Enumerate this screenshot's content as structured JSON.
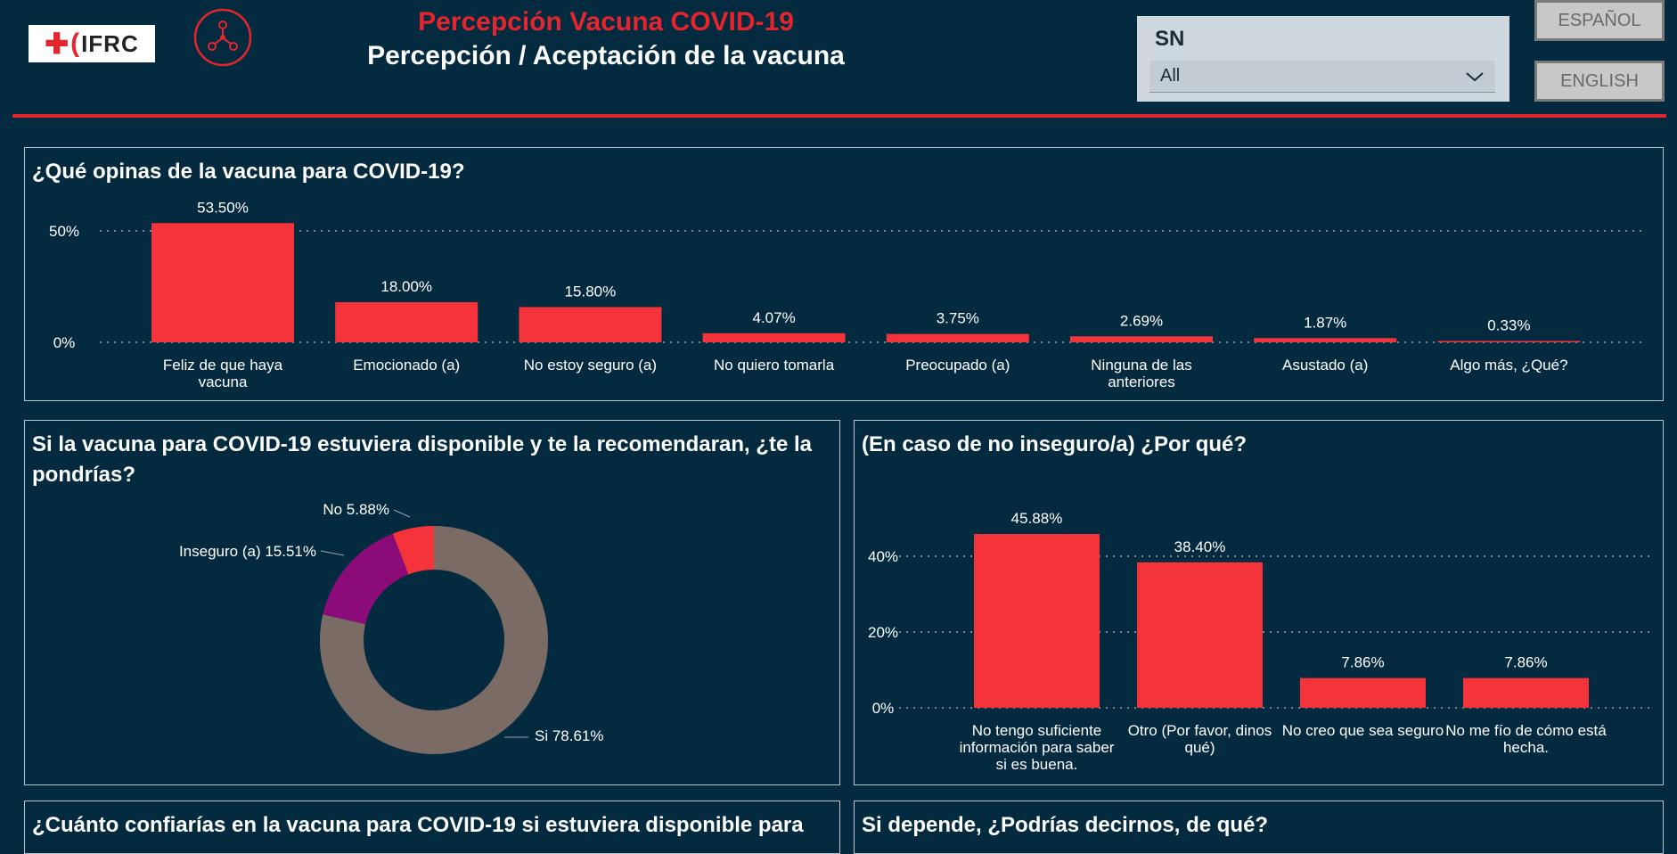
{
  "header": {
    "logo_text": "IFRC",
    "title": "Percepción Vacuna COVID-19",
    "subtitle": "Percepción / Aceptación de la vacuna",
    "filter_label": "SN",
    "filter_value": "All",
    "lang_es": "ESPAÑOL",
    "lang_en": "ENGLISH",
    "accent_color": "#e3262e",
    "bg_color": "#042a40"
  },
  "panels": {
    "p1_title": "¿Qué opinas de la vacuna para COVID-19?",
    "p2_title": "Si la vacuna para COVID-19 estuviera disponible y te la recomendaran, ¿te la pondrías?",
    "p3_title": "(En caso de no inseguro/a) ¿Por qué?",
    "p4_title": "¿Cuánto confiarías en la vacuna para COVID-19 si estuviera disponible para",
    "p5_title": "Si depende, ¿Podrías decirnos, de qué?"
  },
  "chart_data": [
    {
      "type": "bar",
      "title": "¿Qué opinas de la vacuna para COVID-19?",
      "categories": [
        "Feliz de que haya vacuna",
        "Emocionado (a)",
        "No estoy seguro (a)",
        "No quiero tomarla",
        "Preocupado (a)",
        "Ninguna de las anteriores",
        "Asustado (a)",
        "Algo más, ¿Qué?"
      ],
      "values": [
        53.5,
        18.0,
        15.8,
        4.07,
        3.75,
        2.69,
        1.87,
        0.33
      ],
      "labels": [
        "53.50%",
        "18.00%",
        "15.80%",
        "4.07%",
        "3.75%",
        "2.69%",
        "1.87%",
        "0.33%"
      ],
      "yticks": [
        "0%",
        "50%"
      ],
      "ylim": [
        0,
        60
      ],
      "color": "#f4333a"
    },
    {
      "type": "pie",
      "title": "Si la vacuna para COVID-19 estuviera disponible y te la recomendaran, ¿te la pondrías?",
      "slices": [
        {
          "name": "Si",
          "value": 78.61,
          "label": "Si 78.61%",
          "color": "#7a6b65"
        },
        {
          "name": "Inseguro (a)",
          "value": 15.51,
          "label": "Inseguro (a) 15.51%",
          "color": "#8b0c78"
        },
        {
          "name": "No",
          "value": 5.88,
          "label": "No 5.88%",
          "color": "#f4333a"
        }
      ]
    },
    {
      "type": "bar",
      "title": "(En caso de no inseguro/a) ¿Por qué?",
      "categories": [
        "No tengo suficiente información para saber si es buena.",
        "Otro (Por favor, dinos qué)",
        "No creo que sea seguro",
        "No me fío de cómo está hecha."
      ],
      "values": [
        45.88,
        38.4,
        7.86,
        7.86
      ],
      "labels": [
        "45.88%",
        "38.40%",
        "7.86%",
        "7.86%"
      ],
      "yticks": [
        "0%",
        "20%",
        "40%"
      ],
      "ylim": [
        0,
        49
      ],
      "color": "#f4333a"
    }
  ]
}
